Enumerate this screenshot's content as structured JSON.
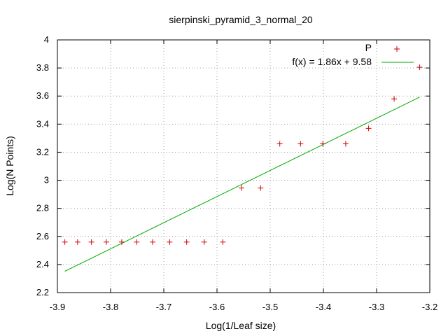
{
  "chart_data": {
    "type": "scatter",
    "title": "sierpinski_pyramid_3_normal_20",
    "xlabel": "Log(1/Leaf size)",
    "ylabel": "Log(N Points)",
    "xlim": [
      -3.9,
      -3.2
    ],
    "ylim": [
      2.2,
      4.0
    ],
    "xticks": [
      -3.9,
      -3.8,
      -3.7,
      -3.6,
      -3.5,
      -3.4,
      -3.3,
      -3.2
    ],
    "xtick_labels": [
      "-3.9",
      "-3.8",
      "-3.7",
      "-3.6",
      "-3.5",
      "-3.4",
      "-3.3",
      "-3.2"
    ],
    "yticks": [
      2.2,
      2.4,
      2.6,
      2.8,
      3.0,
      3.2,
      3.4,
      3.6,
      3.8,
      4.0
    ],
    "ytick_labels": [
      "2.2",
      "2.4",
      "2.6",
      "2.8",
      "3",
      "3.2",
      "3.4",
      "3.6",
      "3.8",
      "4"
    ],
    "grid": true,
    "legend_position": "top-right",
    "colors": {
      "points": "#cc0000",
      "fit": "#00aa00",
      "grid": "#a0a0a0"
    },
    "series": [
      {
        "name": "P",
        "type": "scatter",
        "x": [
          -3.886,
          -3.862,
          -3.836,
          -3.808,
          -3.779,
          -3.751,
          -3.721,
          -3.689,
          -3.657,
          -3.624,
          -3.589,
          -3.554,
          -3.518,
          -3.482,
          -3.443,
          -3.401,
          -3.358,
          -3.315,
          -3.267,
          -3.219
        ],
        "y": [
          2.56,
          2.56,
          2.56,
          2.56,
          2.56,
          2.56,
          2.56,
          2.56,
          2.56,
          2.56,
          2.56,
          2.945,
          2.945,
          3.26,
          3.26,
          3.26,
          3.26,
          3.37,
          3.58,
          3.805
        ]
      },
      {
        "name": "f(x) = 1.86x + 9.58",
        "type": "line",
        "slope": 1.86,
        "intercept": 9.58,
        "x_range": [
          -3.886,
          -3.219
        ]
      }
    ]
  }
}
